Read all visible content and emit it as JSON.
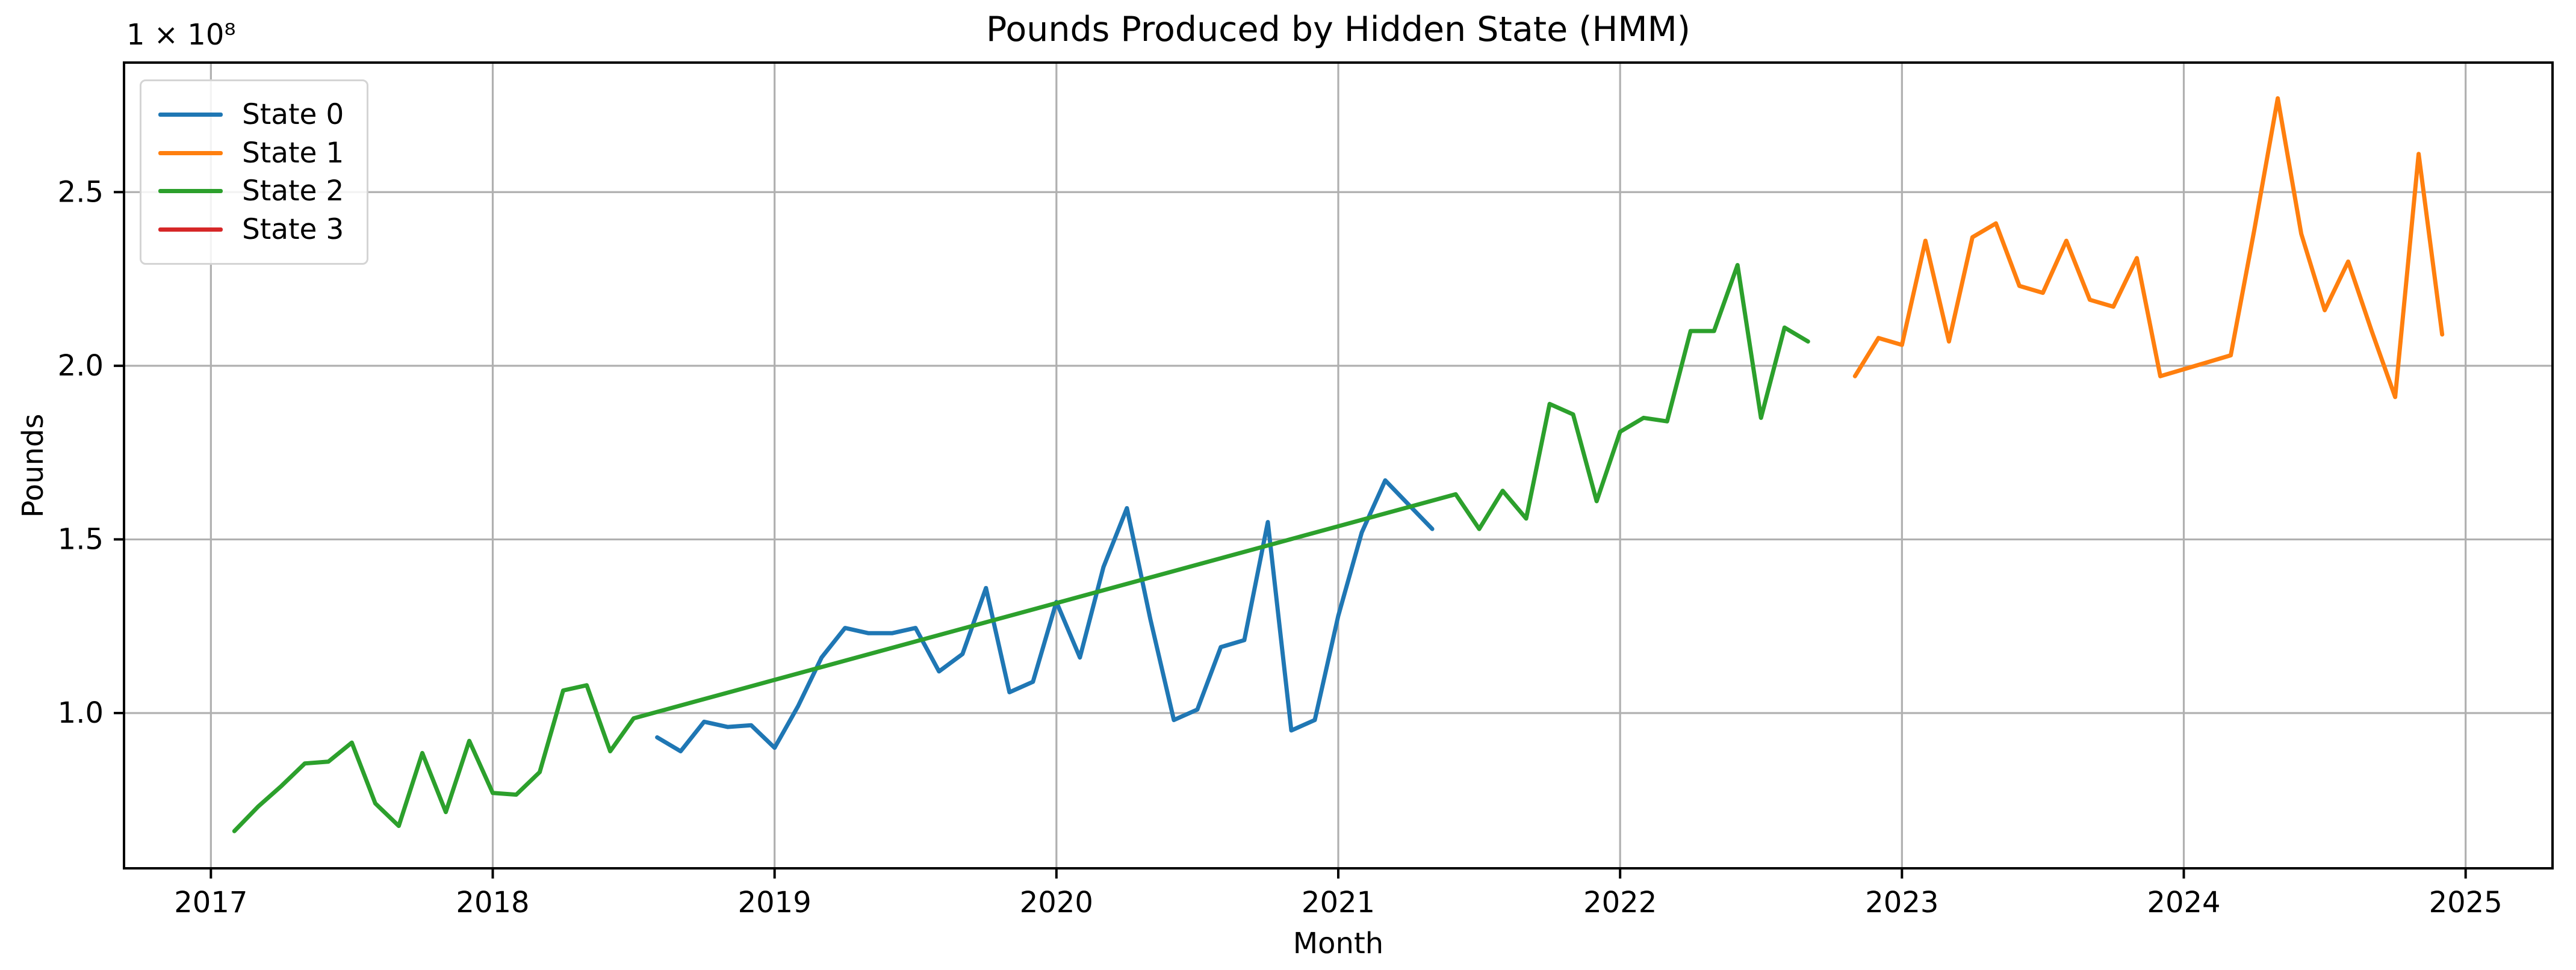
{
  "figure": {
    "offset_text": "1 × 10⁸"
  },
  "colors": {
    "state0": "#1f77b4",
    "state1": "#ff7f0e",
    "state2": "#2ca02c",
    "state3": "#d62728",
    "grid": "#b0b0b0",
    "spine": "#000000",
    "tick": "#000000",
    "background": "#ffffff"
  },
  "chart_data": {
    "type": "line",
    "title": "Pounds Produced by Hidden State (HMM)",
    "xlabel": "Month",
    "ylabel": "Pounds",
    "y_offset_label": "1 × 10⁸",
    "y_unit_factor": 100000000,
    "grid": true,
    "legend_position": "upper left",
    "xlim": [
      2016.6917,
      2025.3083
    ],
    "ylim": [
      0.553,
      2.873
    ],
    "x_ticks": [
      {
        "v": 2017,
        "label": "2017"
      },
      {
        "v": 2018,
        "label": "2018"
      },
      {
        "v": 2019,
        "label": "2019"
      },
      {
        "v": 2020,
        "label": "2020"
      },
      {
        "v": 2021,
        "label": "2021"
      },
      {
        "v": 2022,
        "label": "2022"
      },
      {
        "v": 2023,
        "label": "2023"
      },
      {
        "v": 2024,
        "label": "2024"
      },
      {
        "v": 2025,
        "label": "2025"
      }
    ],
    "y_ticks": [
      {
        "v": 1.0,
        "label": "1.0"
      },
      {
        "v": 1.5,
        "label": "1.5"
      },
      {
        "v": 2.0,
        "label": "2.0"
      },
      {
        "v": 2.5,
        "label": "2.5"
      }
    ],
    "series": [
      {
        "name": "State 0",
        "color": "#1f77b4",
        "points": [
          [
            "2018-08",
            0.93
          ],
          [
            "2018-09",
            0.89
          ],
          [
            "2018-10",
            0.975
          ],
          [
            "2018-11",
            0.96
          ],
          [
            "2018-12",
            0.965
          ],
          [
            "2019-01",
            0.9
          ],
          [
            "2019-02",
            1.02
          ],
          [
            "2019-03",
            1.16
          ],
          [
            "2019-04",
            1.245
          ],
          [
            "2019-05",
            1.23
          ],
          [
            "2019-06",
            1.23
          ],
          [
            "2019-07",
            1.245
          ],
          [
            "2019-08",
            1.12
          ],
          [
            "2019-09",
            1.17
          ],
          [
            "2019-10",
            1.36
          ],
          [
            "2019-11",
            1.06
          ],
          [
            "2019-12",
            1.09
          ],
          [
            "2020-01",
            1.32
          ],
          [
            "2020-02",
            1.16
          ],
          [
            "2020-03",
            1.42
          ],
          [
            "2020-04",
            1.59
          ],
          [
            "2020-05",
            1.27
          ],
          [
            "2020-06",
            0.98
          ],
          [
            "2020-07",
            1.01
          ],
          [
            "2020-08",
            1.19
          ],
          [
            "2020-09",
            1.21
          ],
          [
            "2020-10",
            1.55
          ],
          [
            "2020-11",
            0.95
          ],
          [
            "2020-12",
            0.98
          ],
          [
            "2021-01",
            1.28
          ],
          [
            "2021-02",
            1.52
          ],
          [
            "2021-03",
            1.67
          ],
          [
            "2021-04",
            1.6
          ],
          [
            "2021-05",
            1.53
          ]
        ]
      },
      {
        "name": "State 1",
        "color": "#ff7f0e",
        "points": [
          [
            "2022-11",
            1.97
          ],
          [
            "2022-12",
            2.08
          ],
          [
            "2023-01",
            2.06
          ],
          [
            "2023-02",
            2.36
          ],
          [
            "2023-03",
            2.07
          ],
          [
            "2023-04",
            2.37
          ],
          [
            "2023-05",
            2.41
          ],
          [
            "2023-06",
            2.23
          ],
          [
            "2023-07",
            2.21
          ],
          [
            "2023-08",
            2.36
          ],
          [
            "2023-09",
            2.19
          ],
          [
            "2023-10",
            2.17
          ],
          [
            "2023-11",
            2.31
          ],
          [
            "2023-12",
            1.97
          ],
          [
            "2024-01",
            1.99
          ],
          [
            "2024-02",
            2.01
          ],
          [
            "2024-03",
            2.03
          ],
          [
            "2024-04",
            2.39
          ],
          [
            "2024-05",
            2.77
          ],
          [
            "2024-06",
            2.38
          ],
          [
            "2024-07",
            2.16
          ],
          [
            "2024-08",
            2.3
          ],
          [
            "2024-09",
            2.1
          ],
          [
            "2024-10",
            1.91
          ],
          [
            "2024-11",
            2.61
          ],
          [
            "2024-12",
            2.09
          ]
        ]
      },
      {
        "name": "State 2",
        "color": "#2ca02c",
        "points": [
          [
            "2017-02",
            0.66
          ],
          [
            "2017-03",
            0.73
          ],
          [
            "2017-04",
            0.79
          ],
          [
            "2017-05",
            0.855
          ],
          [
            "2017-06",
            0.86
          ],
          [
            "2017-07",
            0.915
          ],
          [
            "2017-08",
            0.74
          ],
          [
            "2017-09",
            0.675
          ],
          [
            "2017-10",
            0.885
          ],
          [
            "2017-11",
            0.715
          ],
          [
            "2017-12",
            0.92
          ],
          [
            "2018-01",
            0.77
          ],
          [
            "2018-02",
            0.765
          ],
          [
            "2018-03",
            0.83
          ],
          [
            "2018-04",
            1.065
          ],
          [
            "2018-05",
            1.08
          ],
          [
            "2018-06",
            0.89
          ],
          [
            "2018-07",
            0.985
          ],
          [
            "2021-06",
            1.63
          ],
          [
            "2021-07",
            1.53
          ],
          [
            "2021-08",
            1.64
          ],
          [
            "2021-09",
            1.56
          ],
          [
            "2021-10",
            1.89
          ],
          [
            "2021-11",
            1.86
          ],
          [
            "2021-12",
            1.61
          ],
          [
            "2022-01",
            1.81
          ],
          [
            "2022-02",
            1.85
          ],
          [
            "2022-03",
            1.84
          ],
          [
            "2022-04",
            2.1
          ],
          [
            "2022-05",
            2.1
          ],
          [
            "2022-06",
            2.29
          ],
          [
            "2022-07",
            1.85
          ],
          [
            "2022-08",
            2.11
          ],
          [
            "2022-09",
            2.07
          ]
        ]
      },
      {
        "name": "State 3",
        "color": "#d62728",
        "points": []
      }
    ]
  }
}
